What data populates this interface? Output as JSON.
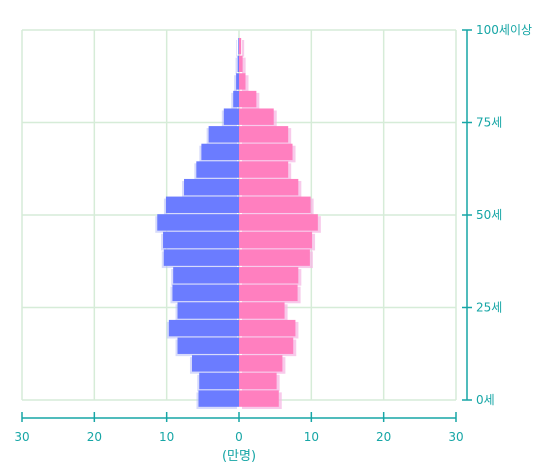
{
  "chart_data": {
    "type": "bar",
    "orientation": "horizontal-population-pyramid",
    "xlabel": "(만명)",
    "x_ticks": [
      "30",
      "20",
      "10",
      "0",
      "10",
      "20",
      "30"
    ],
    "xlim": [
      -30,
      30
    ],
    "y_ticks": [
      "0세",
      "25세",
      "50세",
      "75세",
      "100세이상"
    ],
    "ylim": [
      0,
      100
    ],
    "grid": true,
    "colors": {
      "left": "#6b7cff",
      "right": "#ff7fbf",
      "shadow_right": "#f6b8e4",
      "shadow_left": "#b7bdf7",
      "grid": "#d6ecd8",
      "axis": "#17a6a6"
    },
    "age_groups": [
      "0-4",
      "5-9",
      "10-14",
      "15-19",
      "20-24",
      "25-29",
      "30-34",
      "35-39",
      "40-44",
      "45-49",
      "50-54",
      "55-59",
      "60-64",
      "65-69",
      "70-74",
      "75-79",
      "80-84",
      "85-89",
      "90-94",
      "95-99",
      "100+"
    ],
    "series": [
      {
        "side": "left",
        "values": [
          5.6,
          5.5,
          6.5,
          8.5,
          9.7,
          8.5,
          9.2,
          9.1,
          10.4,
          10.5,
          11.3,
          10.1,
          7.6,
          5.9,
          5.2,
          4.2,
          2.1,
          0.8,
          0.4,
          0.2,
          0.1
        ]
      },
      {
        "side": "right",
        "values": [
          5.5,
          5.2,
          6.0,
          7.5,
          7.8,
          6.3,
          8.1,
          8.2,
          9.8,
          10.1,
          10.9,
          9.9,
          8.2,
          6.8,
          7.4,
          6.8,
          4.8,
          2.4,
          0.9,
          0.5,
          0.3
        ]
      }
    ]
  }
}
